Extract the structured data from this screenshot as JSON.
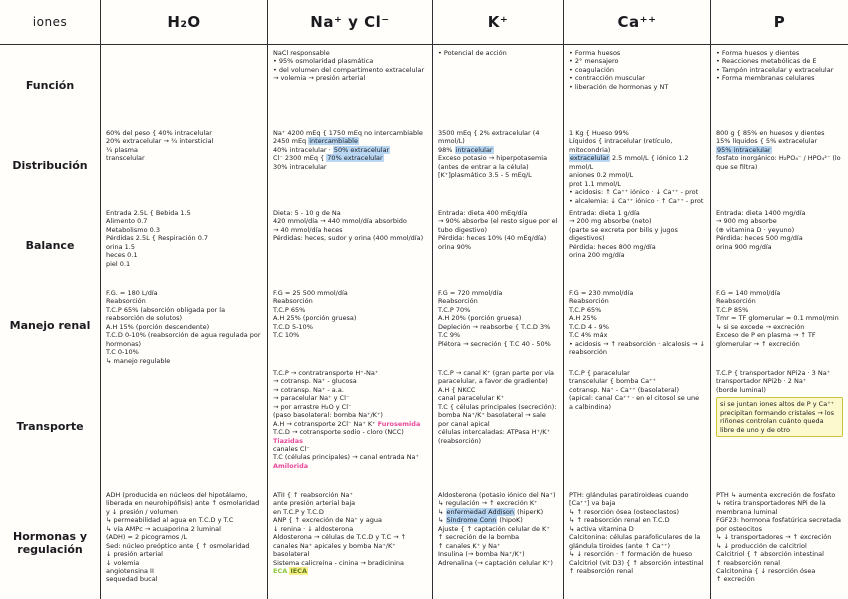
{
  "table": {
    "header": [
      "iones",
      "H₂O",
      "Na⁺ y Cl⁻",
      "K⁺",
      "Ca⁺⁺",
      "P"
    ],
    "row_labels": [
      "Función",
      "Distribución",
      "Balance",
      "Manejo renal",
      "Transporte",
      "Hormonas y regulación"
    ]
  },
  "colors": {
    "ink": "#1b1b1f",
    "highlight_blue": "#b9d7f3",
    "annotation_pink": "#e8489b",
    "annotation_green": "#8dc63f",
    "highlight_yellow": "#f6ef86",
    "note_box_yellow": "#fcf9cf"
  },
  "cells": {
    "h2o": {
      "funcion": [],
      "distribucion": [
        {
          "t": "60% del peso {  40% intracelular\n20% extracelular → ¾ intersticial\n¼ plasma\ntranscelular"
        }
      ],
      "balance": [
        {
          "t": "Entrada 2.5L {  Bebida 1.5\nAlimento 0.7\nMetabolismo 0.3\nPérdidas 2.5L {  Respiración 0.7\norina 1.5\nheces 0.1\npiel 0.1"
        }
      ],
      "manejo": [
        {
          "t": "F.G. = 180 L/día\nReabsorción\nT.C.P  65%  (absorción obligada por la reabsorción de solutos)\nA.H  15%  (porción descendente)\nT.C.D  0-10%  (reabsorción de agua regulada por hormonas)\nT.C  0-10%\n↳ manejo regulable"
        }
      ],
      "transporte": [],
      "hormonas": [
        {
          "t": "ADH (producida en núcleos del hipotálamo, liberada en neurohipófisis) ante ↑ osmolaridad y ↓ presión / volumen\n↳ permeabilidad al agua en T.C.D y T.C\n↳ vía AMPc → acuaporina 2 luminal\n(ADH) = 2 picogramos /L\nSed: núcleo preóptico ante {  ↑ osmolaridad\n↓ presión arterial\n↓ volemia\nangiotensina II\nsequedad bucal"
        }
      ]
    },
    "na_cl": {
      "funcion": [
        {
          "t": "NaCl responsable\n• 95% osmolaridad plasmática\n• del volumen del compartimento extracelular → volemia → presión arterial"
        }
      ],
      "distribucion": [
        {
          "t": "Na⁺ 4200 mEq {  1750 mEq no intercambiable\n2450 mEq "
        },
        {
          "t": "intercambiable",
          "c": "hlblue"
        },
        {
          "t": "\n40% intracelular · "
        },
        {
          "t": "50% extracelular",
          "c": "hlblue"
        },
        {
          "t": "\nCl⁻ 2300 mEq {  "
        },
        {
          "t": "70% extracelular",
          "c": "hlblue"
        },
        {
          "t": "\n30% intracelular"
        }
      ],
      "balance": [
        {
          "t": "Dieta: 5 - 10 g de Na\n420 mmol/día → 440 mmol/día absorbido\n→ 40 mmol/día heces\nPérdidas: heces, sudor y orina (400 mmol/día)"
        }
      ],
      "manejo": [
        {
          "t": "F.G = 25 500 mmol/día\nReabsorción\nT.C.P  65%\nA.H  25%  (porción gruesa)\nT.C.D  5-10%\nT.C  10%"
        }
      ],
      "transporte": [
        {
          "t": "T.C.P → contratransporte H⁺-Na⁺\n→ cotransp. Na⁺ - glucosa\n→ cotransp. Na⁺ - a.a.\n→ paracelular Na⁺ y Cl⁻\n→ por arrastre H₂O y Cl⁻\n(paso basolateral: bomba Na⁺/K⁺)\nA.H → cotransporte 2Cl⁻ Na⁺ K⁺  "
        },
        {
          "t": "Furosemida",
          "c": "pink"
        },
        {
          "t": "\nT.C.D → cotransporte sodio - cloro (NCC)  "
        },
        {
          "t": "Tiazidas",
          "c": "pink"
        },
        {
          "t": "\ncanales Cl⁻\nT.C (células principales) → canal entrada Na⁺  "
        },
        {
          "t": "Amilorida",
          "c": "pink"
        }
      ],
      "hormonas": [
        {
          "t": "ATII {  ↑ reabsorción Na⁺\nante presión arterial baja\nen T.C.P y T.C.D\nANP {  ↑ excreción de Na⁺ y agua\n↓ renina · ↓ aldosterona\nAldosterona → células de T.C.D y T.C → ↑ canales Na⁺ apicales y bomba Na⁺/K⁺ basolateral\nSistema calicreína - cinina → bradicinina\n"
        },
        {
          "t": "ECA",
          "c": "green"
        },
        {
          "t": "   "
        },
        {
          "t": "IECA",
          "c": "hlyellow"
        }
      ]
    },
    "k": {
      "funcion": [
        {
          "t": "• Potencial de acción"
        }
      ],
      "distribucion": [
        {
          "t": "3500 mEq {  2% extracelular (4 mmol/L)\n98% "
        },
        {
          "t": "intracelular",
          "c": "hlblue"
        },
        {
          "t": "\nExceso potasio → hiperpotasemia (antes de entrar a la célula)\n[K⁺]plasmático  3.5 - 5 mEq/L"
        }
      ],
      "balance": [
        {
          "t": "Entrada: dieta  400 mEq/día\n→ 90% absorbe (el resto sigue por el tubo digestivo)\nPérdida: heces 10% (40 mEq/día)\norina 90%"
        }
      ],
      "manejo": [
        {
          "t": "F.G = 720 mmol/día\nReabsorción\nT.C.P  70%\nA.H  20%  (porción gruesa)\nDepleción → reabsorbe {  T.C.D 3%\nT.C 9%\nPlétora → secreción {  T.C 40 - 50%"
        }
      ],
      "transporte": [
        {
          "t": "T.C.P → canal K⁺ (gran parte por vía paracelular, a favor de gradiente)\nA.H {  NKCC\ncanal paracelular K⁺\nT.C {  células principales (secreción): bomba Na⁺/K⁺ basolateral → sale por canal apical\ncélulas intercaladas: ATPasa H⁺/K⁺ (reabsorción)"
        }
      ],
      "hormonas": [
        {
          "t": "Aldosterona (potasio iónico del Na⁺)\n↳ regulación → ↑ excreción K⁺\n↳ "
        },
        {
          "t": "enfermedad Addison",
          "c": "hlblue"
        },
        {
          "t": " (hiperK)\n↳ "
        },
        {
          "t": "Síndrome Conn",
          "c": "hlblue"
        },
        {
          "t": " (hipoK)\nAjuste {  ↑ captación celular de K⁺\n↑ secreción de la bomba\n↑ canales K⁺ y Na⁺\nInsulina (→ bomba Na⁺/K⁺)\nAdrenalina (→ captación celular K⁺)"
        }
      ]
    },
    "ca": {
      "funcion": [
        {
          "t": "• Forma huesos\n• 2° mensajero\n• coagulación\n• contracción muscular\n• liberación de hormonas y NT"
        }
      ],
      "distribucion": [
        {
          "t": "1 Kg {  Hueso 99%\nLíquidos {  intracelular (retículo, mitocondria)\n"
        },
        {
          "t": "extracelular",
          "c": "hlblue"
        },
        {
          "t": " 2.5 mmol/L {  iónico 1.2 mmol/L\naniones 0.2 mmol/L\nprot 1.1 mmol/L\n• acidosis: ↑ Ca⁺⁺ iónico · ↓ Ca⁺⁺ - prot\n• alcalemia: ↓ Ca⁺⁺ iónico · ↑ Ca⁺⁺ - prot\n• déficit proteico: hipercalcemia iónica\n• tetania: hipocalcemia iónica"
        }
      ],
      "balance": [
        {
          "t": "Entrada: dieta  1 g/día\n→ 200 mg absorbe (neto)\n(parte se excreta por bilis y jugos digestivos)\nPérdida: heces 800 mg/día\norina 200 mg/día"
        }
      ],
      "manejo": [
        {
          "t": "F.G = 230 mmol/día\nReabsorción\nT.C.P  65%\nA.H  25%\nT.C.D  4 - 9%\nT.C  4% máx\n• acidosis → ↑ reabsorción · alcalosis → ↓ reabsorción"
        }
      ],
      "transporte": [
        {
          "t": "T.C.P {  paracelular\ntranscelular {  bomba Ca⁺⁺\ncotransp. Na⁺ - Ca⁺⁺ (basolateral)\n(apical: canal Ca⁺⁺ · en el citosol se une a calbindina)"
        }
      ],
      "hormonas": [
        {
          "t": "PTH: glándulas paratiroideas cuando [Ca⁺⁺] va baja\n↳ ↑ resorción ósea (osteoclastos)\n↳ ↑ reabsorción renal en T.C.D\n↳ activa vitamina D\nCalcitonina: células parafoliculares de la glándula tiroides (ante ↑ Ca⁺⁺)\n↳ ↓ resorción · ↑ formación de hueso\nCalcitriol (vit D3) {  ↑ absorción intestinal\n↑ reabsorción renal"
        }
      ]
    },
    "p": {
      "funcion": [
        {
          "t": "• Forma huesos y dientes\n• Reacciones metabólicas de E\n• Tampón intracelular y extracelular\n• Forma membranas celulares"
        }
      ],
      "distribucion": [
        {
          "t": "800 g {  85% en huesos y dientes\n15% líquidos {  5% extracelular\n"
        },
        {
          "t": "95% intracelular",
          "c": "hlblue"
        },
        {
          "t": "\nfosfato inorgánico: H₂PO₄⁻ / HPO₄²⁻ (lo que se filtra)"
        }
      ],
      "balance": [
        {
          "t": "Entrada: dieta  1400 mg/día\n→ 900 mg absorbe\n(⊕ vitamina D · yeyuno)\nPérdida: heces 500 mg/día\norina 900 mg/día"
        }
      ],
      "manejo": [
        {
          "t": "F.G = 140 mmol/día\nReabsorción\nT.C.P  85%\nTmr = TF glomerular = 0.1 mmol/min\n↳ si se excede → excreción\nExceso de P en plasma → ↑ TF glomerular → ↑ excreción"
        }
      ],
      "transporte": [
        {
          "t": "T.C.P {  transportador NPi2a · 3 Na⁺\ntransportador NPi2b · 2 Na⁺\n(borde luminal)\n"
        },
        {
          "t": "si se juntan iones altos de P y Ca⁺⁺ precipitan formando cristales → los riñones controlan cuánto queda libre de uno y de otro",
          "c": "boxyellow"
        }
      ],
      "hormonas": [
        {
          "t": "PTH ↳ aumenta excreción de fosfato\n↳ retira transportadores NPi de la membrana luminal\nFGF23: hormona fosfatúrica secretada por osteocitos\n↳ ↓ transportadores → ↑ excreción\n↳ ↓ producción de calcitriol\nCalcitriol {  ↑ absorción intestinal\n↑ reabsorción renal\nCalcitonina {  ↓ resorción ósea\n↑ excreción"
        }
      ]
    }
  }
}
